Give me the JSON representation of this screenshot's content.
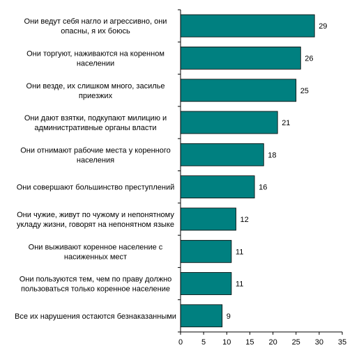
{
  "chart_data": {
    "type": "bar",
    "orientation": "horizontal",
    "categories": [
      [
        "Они ведут себя нагло и агрессивно, они",
        "опасны, я их боюсь"
      ],
      [
        "Они торгуют, наживаются на коренном",
        "населении"
      ],
      [
        "Они везде, их слишком много, засилье",
        "приезжих"
      ],
      [
        "Они дают взятки, подкупают милицию и",
        "административные органы власти"
      ],
      [
        "Они отнимают рабочие места у коренного",
        "населения"
      ],
      [
        "Они совершают большинство преступлений"
      ],
      [
        "Они чужие, живут по чужому и непонятному",
        "укладу жизни, говорят на непонятном языке"
      ],
      [
        "Они выживают коренное население с",
        "насиженных мест"
      ],
      [
        "Они пользуются тем, чем по праву должно",
        "пользоваться только коренное население"
      ],
      [
        "Все их нарушения остаются безнаказанными"
      ]
    ],
    "values": [
      29,
      26,
      25,
      21,
      18,
      16,
      12,
      11,
      11,
      9
    ],
    "xlim": [
      0,
      35
    ],
    "xticks": [
      "0",
      "5",
      "10",
      "15",
      "20",
      "25",
      "30",
      "35"
    ],
    "grid": false,
    "legend": "none",
    "title": "",
    "xlabel": "",
    "ylabel": ""
  },
  "colors": {
    "bar_fill": "#008080",
    "bar_stroke": "#000000",
    "axis": "#000000"
  }
}
